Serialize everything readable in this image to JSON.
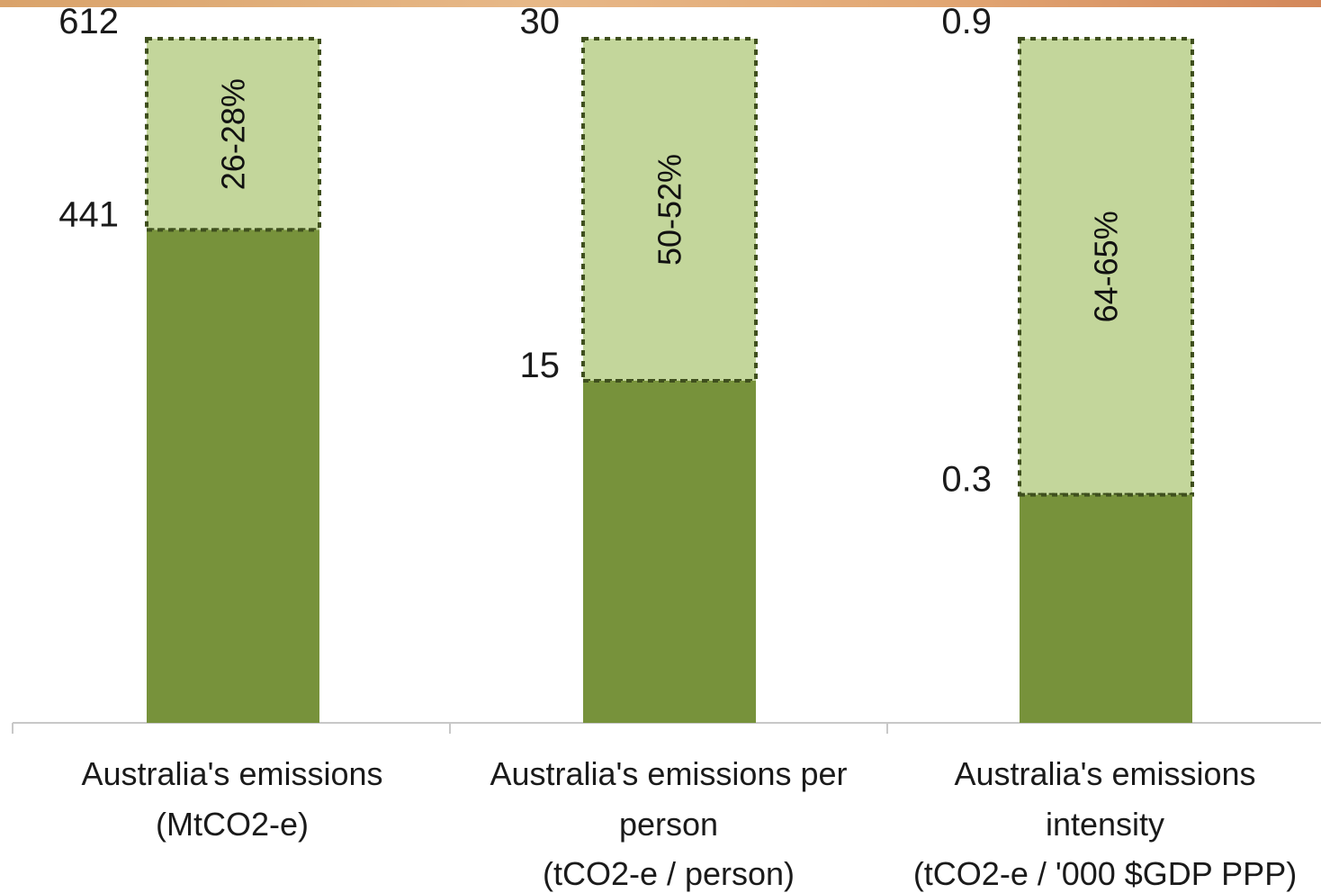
{
  "chart_data": {
    "type": "bar",
    "categories": [
      [
        "Australia's emissions",
        "(MtCO2-e)"
      ],
      [
        "Australia's emissions per",
        "person",
        "(tCO2-e  / person)"
      ],
      [
        "Australia's emissions",
        "intensity",
        "(tCO2-e / '000 $GDP PPP)"
      ]
    ],
    "bars": [
      {
        "base_value": 441,
        "base_label": "441",
        "top_value": 612,
        "top_label": "612",
        "reduction_label": "26-28%"
      },
      {
        "base_value": 15,
        "base_label": "15",
        "top_value": 30,
        "top_label": "30",
        "reduction_label": "50-52%"
      },
      {
        "base_value": 0.3,
        "base_label": "0.3",
        "top_value": 0.9,
        "top_label": "0.9",
        "reduction_label": "64-65%"
      }
    ],
    "grid": false,
    "legend": "none",
    "colors": {
      "base": "#77923b",
      "reduction": "#c3d69b",
      "dash": "#3f4f1e",
      "axis": "#c8c8c8"
    }
  }
}
